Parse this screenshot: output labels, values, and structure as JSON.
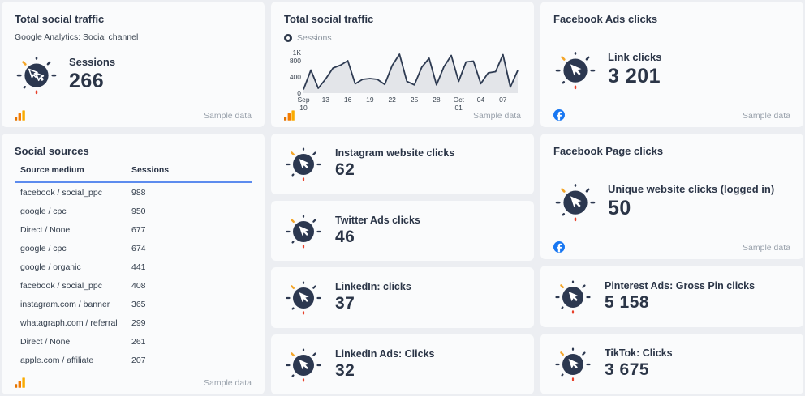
{
  "cards": {
    "traffic_number": {
      "title": "Total social traffic",
      "subtitle": "Google Analytics: Social channel",
      "metric_label": "Sessions",
      "metric_value": "266",
      "sample": "Sample data"
    },
    "traffic_chart": {
      "title": "Total social traffic",
      "legend_label": "Sessions",
      "sample": "Sample data"
    },
    "facebook_ads": {
      "title": "Facebook Ads clicks",
      "metric_label": "Link clicks",
      "metric_value": "3 201",
      "sample": "Sample data"
    },
    "social_sources": {
      "title": "Social sources",
      "col_source": "Source medium",
      "col_sessions": "Sessions",
      "sample": "Sample data",
      "rows": [
        {
          "source": "facebook / social_ppc",
          "sessions": "988"
        },
        {
          "source": "google / cpc",
          "sessions": "950"
        },
        {
          "source": "Direct / None",
          "sessions": "677"
        },
        {
          "source": "google / cpc",
          "sessions": "674"
        },
        {
          "source": "google / organic",
          "sessions": "441"
        },
        {
          "source": "facebook / social_ppc",
          "sessions": "408"
        },
        {
          "source": "instagram.com / banner",
          "sessions": "365"
        },
        {
          "source": "whatagraph.com / referral",
          "sessions": "299"
        },
        {
          "source": "Direct / None",
          "sessions": "261"
        },
        {
          "source": "apple.com / affiliate",
          "sessions": "207"
        }
      ]
    },
    "instagram": {
      "label": "Instagram website clicks",
      "value": "62"
    },
    "twitter": {
      "label": "Twitter Ads clicks",
      "value": "46"
    },
    "linkedin": {
      "label": "LinkedIn: clicks",
      "value": "37"
    },
    "linkedin_ads": {
      "label": "LinkedIn Ads: Clicks",
      "value": "32"
    },
    "facebook_page": {
      "title": "Facebook Page clicks",
      "metric_label": "Unique website clicks (logged in)",
      "metric_value": "50",
      "sample": "Sample data"
    },
    "pinterest": {
      "label": "Pinterest Ads: Gross Pin clicks",
      "value": "5 158"
    },
    "tiktok": {
      "label": "TikTok: Clicks",
      "value": "3 675"
    }
  },
  "chart_data": {
    "type": "area",
    "title": "Total social traffic",
    "legend": [
      "Sessions"
    ],
    "series": [
      {
        "name": "Sessions",
        "values": [
          90,
          570,
          120,
          350,
          620,
          690,
          800,
          230,
          340,
          360,
          340,
          215,
          680,
          960,
          290,
          205,
          640,
          860,
          205,
          650,
          930,
          290,
          770,
          790,
          235,
          500,
          530,
          950,
          150,
          560
        ]
      }
    ],
    "ylim": [
      0,
      1000
    ],
    "y_ticks": [
      {
        "v": 0,
        "label": "0"
      },
      {
        "v": 400,
        "label": "400"
      },
      {
        "v": 800,
        "label": "800"
      },
      {
        "v": 1000,
        "label": "1K"
      }
    ],
    "x_ticks": [
      {
        "index": 0,
        "lines": [
          "Sep",
          "10"
        ]
      },
      {
        "index": 3,
        "lines": [
          "13"
        ]
      },
      {
        "index": 6,
        "lines": [
          "16"
        ]
      },
      {
        "index": 9,
        "lines": [
          "19"
        ]
      },
      {
        "index": 12,
        "lines": [
          "22"
        ]
      },
      {
        "index": 15,
        "lines": [
          "25"
        ]
      },
      {
        "index": 18,
        "lines": [
          "28"
        ]
      },
      {
        "index": 21,
        "lines": [
          "Oct",
          "01"
        ]
      },
      {
        "index": 24,
        "lines": [
          "04"
        ]
      },
      {
        "index": 27,
        "lines": [
          "07"
        ]
      }
    ],
    "line_color": "#2e3b52",
    "area_color": "#e3e5e9",
    "tick_color": "#39434f",
    "grid": false,
    "legend_position": "top-left"
  }
}
